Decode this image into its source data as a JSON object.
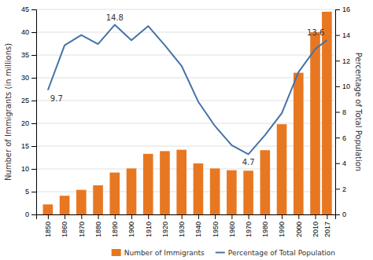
{
  "chart_data": {
    "type": "bar",
    "x": [
      1850,
      1860,
      1870,
      1880,
      1890,
      1900,
      1910,
      1920,
      1930,
      1940,
      1950,
      1960,
      1970,
      1980,
      1990,
      2000,
      2010,
      2017
    ],
    "xlim": [
      1843,
      2022
    ],
    "xticks": [
      1850,
      1860,
      1870,
      1880,
      1890,
      1900,
      1910,
      1920,
      1930,
      1940,
      1950,
      1960,
      1970,
      1980,
      1990,
      2000,
      2010,
      2017
    ],
    "ylabel": "Number of Immigrants (in millions)",
    "ylim": [
      0,
      45
    ],
    "yticks": [
      0,
      5,
      10,
      15,
      20,
      25,
      30,
      35,
      40,
      45
    ],
    "y2label": "Percentage of Total Population",
    "y2lim": [
      0,
      16
    ],
    "y2ticks": [
      0,
      2,
      4,
      6,
      8,
      10,
      12,
      14,
      16
    ],
    "grid": true,
    "legend": "lower right",
    "series": [
      {
        "name": "Number of Immigrants",
        "type": "bar",
        "color": "#E87722",
        "values": [
          2.2,
          4.1,
          5.4,
          6.4,
          9.2,
          10.1,
          13.3,
          13.9,
          14.2,
          11.2,
          10.1,
          9.7,
          9.6,
          14.1,
          19.8,
          31.1,
          40.0,
          44.5
        ]
      },
      {
        "name": "Percentage of Total Population",
        "type": "line",
        "color": "#4472A8",
        "axis": "y2",
        "values": [
          9.7,
          13.2,
          14.0,
          13.3,
          14.8,
          13.6,
          14.7,
          13.2,
          11.6,
          8.8,
          6.9,
          5.4,
          4.7,
          6.2,
          7.9,
          11.1,
          12.9,
          13.6
        ]
      }
    ],
    "annotations": [
      {
        "text": "9.7",
        "x": 1850,
        "y": 9.7,
        "axis": "y2"
      },
      {
        "text": "14.8",
        "x": 1890,
        "y": 14.8,
        "axis": "y2"
      },
      {
        "text": "4.7",
        "x": 1970,
        "y": 4.7,
        "axis": "y2"
      },
      {
        "text": "13.6",
        "x": 2017,
        "y": 13.6,
        "axis": "y2"
      }
    ]
  }
}
